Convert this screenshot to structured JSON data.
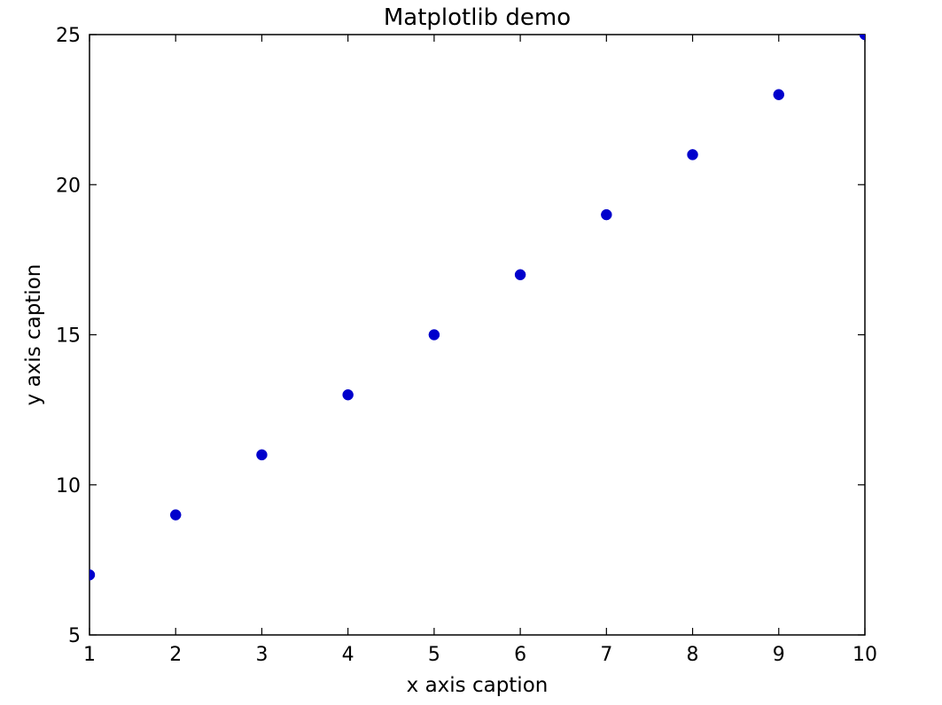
{
  "chart_data": {
    "type": "scatter",
    "title": "Matplotlib demo",
    "xlabel": "x axis caption",
    "ylabel": "y axis caption",
    "xlim": [
      1,
      10
    ],
    "ylim": [
      5,
      25
    ],
    "x_ticks": [
      1,
      2,
      3,
      4,
      5,
      6,
      7,
      8,
      9,
      10
    ],
    "y_ticks": [
      5,
      10,
      15,
      20,
      25
    ],
    "grid": false,
    "marker_color": "#0000cc",
    "series": [
      {
        "x": [
          1,
          2,
          3,
          4,
          5,
          6,
          7,
          8,
          9,
          10
        ],
        "y": [
          7,
          9,
          11,
          13,
          15,
          17,
          19,
          21,
          23,
          25
        ]
      }
    ]
  }
}
